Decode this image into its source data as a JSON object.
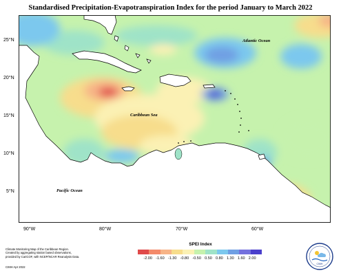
{
  "title": "Standardised Precipitation-Evapotranspiration Index for the period January to March 2022",
  "map": {
    "lat_ticks": [
      "25°N",
      "20°N",
      "15°N",
      "10°N",
      "5°N"
    ],
    "lon_ticks": [
      "90°W",
      "80°W",
      "70°W",
      "60°W"
    ],
    "labels": {
      "atlantic": "Atlantic Ocean",
      "caribbean": "Caribbean Sea",
      "pacific": "Pacific Ocean"
    }
  },
  "legend": {
    "title": "SPEI Index",
    "ticks": [
      "-2.00",
      "-1.60",
      "-1.30",
      "-0.80",
      "-0.50",
      "0.50",
      "0.80",
      "1.30",
      "1.60",
      "2.00"
    ],
    "colors": [
      "#e04a4a",
      "#f48a6a",
      "#f7b487",
      "#f7dd8c",
      "#fbf1b4",
      "#c6f2ad",
      "#9fe3c8",
      "#7cc8ee",
      "#6f9fe3",
      "#7471de",
      "#4a3fcc"
    ]
  },
  "credits": {
    "line1": "Climate Monitoring Map of the Caribbean Region.",
    "line2": "Created by aggregating station based observations,",
    "line3": "provided by CariCOF, with NCEP/NCAR Reanalysis Data.",
    "author": "CIMH Apr 2022"
  },
  "logo": {
    "text": "CIMH"
  }
}
